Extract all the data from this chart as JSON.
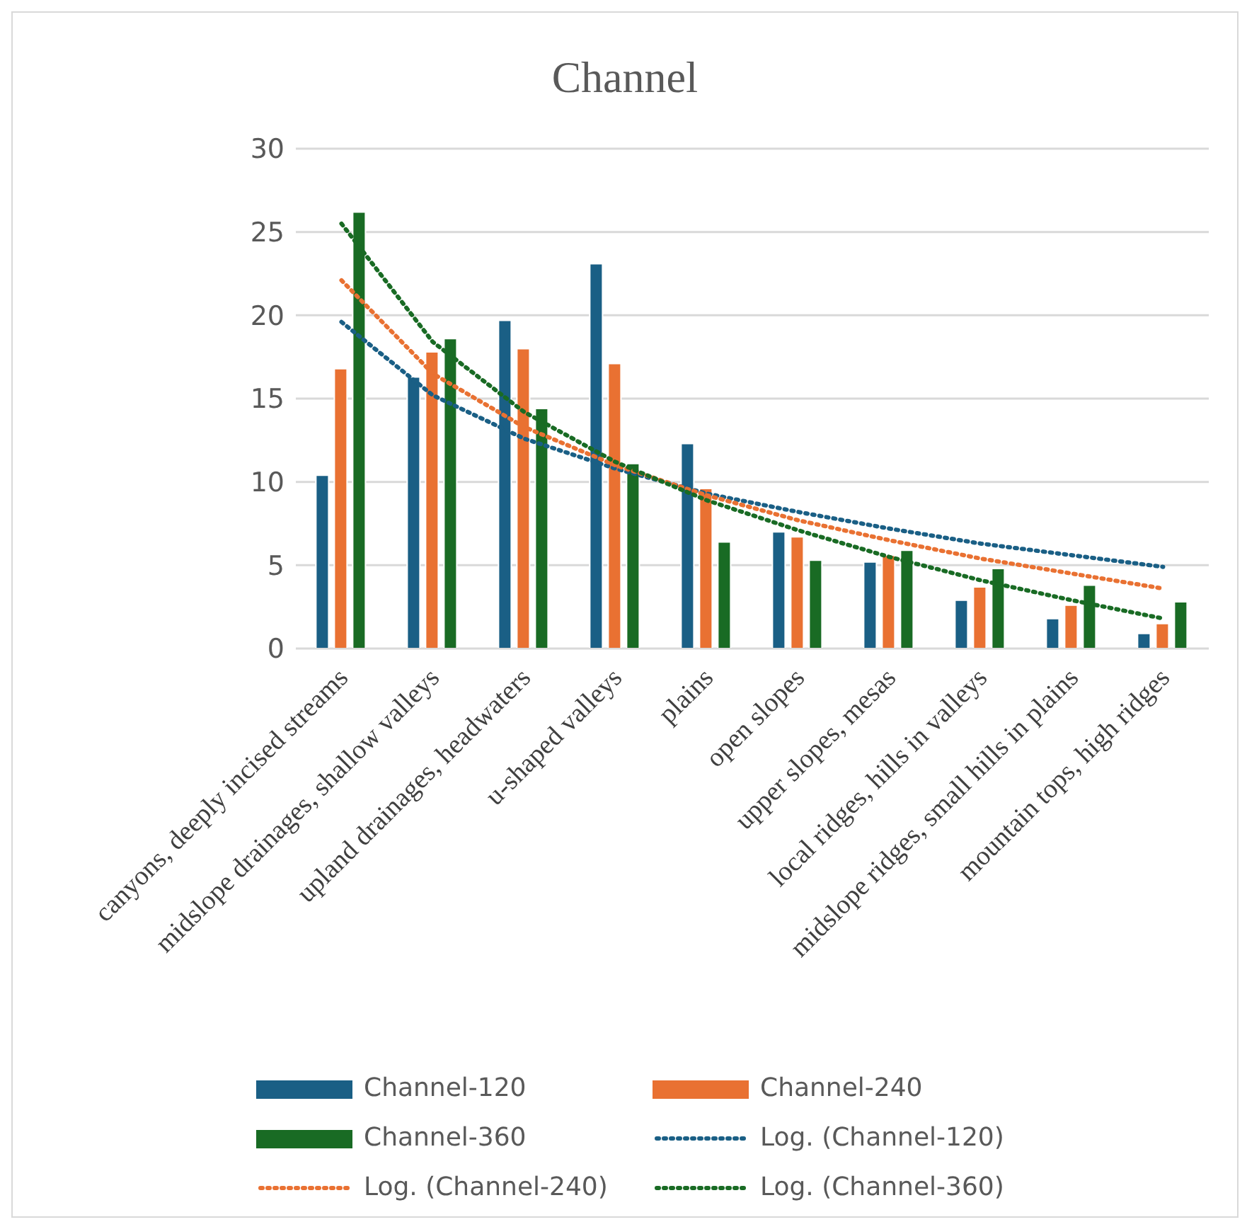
{
  "chart_data": {
    "type": "bar",
    "title": "Channel",
    "categories": [
      "canyons, deeply incised streams",
      "midslope drainages, shallow valleys",
      "upland drainages, headwaters",
      "u-shaped valleys",
      "plains",
      "open slopes",
      "upper slopes, mesas",
      "local ridges, hills in valleys",
      "midslope ridges, small hills in plains",
      "mountain tops, high ridges"
    ],
    "series": [
      {
        "name": "Channel-120",
        "color": "#1a5f85",
        "values": [
          10.4,
          16.3,
          19.7,
          23.1,
          12.3,
          7.0,
          5.2,
          2.9,
          1.8,
          0.9
        ]
      },
      {
        "name": "Channel-240",
        "color": "#e97132",
        "values": [
          16.8,
          17.8,
          18.0,
          17.1,
          9.6,
          6.7,
          5.6,
          3.7,
          2.6,
          1.5
        ]
      },
      {
        "name": "Channel-360",
        "color": "#196b24",
        "values": [
          26.2,
          18.6,
          14.4,
          11.1,
          6.4,
          5.3,
          5.9,
          4.8,
          3.8,
          2.8
        ]
      },
      {
        "name": "Log. (Channel-120)",
        "type": "line",
        "color": "#1a5f85",
        "values": [
          19.6,
          15.2,
          12.6,
          10.8,
          9.3,
          8.2,
          7.2,
          6.3,
          5.6,
          4.9
        ]
      },
      {
        "name": "Log. (Channel-240)",
        "type": "line",
        "color": "#e97132",
        "values": [
          22.1,
          16.5,
          13.3,
          11.0,
          9.2,
          7.7,
          6.5,
          5.4,
          4.5,
          3.6
        ]
      },
      {
        "name": "Log. (Channel-360)",
        "type": "line",
        "color": "#196b24",
        "values": [
          25.5,
          18.4,
          14.2,
          11.2,
          8.9,
          7.1,
          5.5,
          4.1,
          2.9,
          1.8
        ]
      }
    ],
    "ylim": [
      0,
      30
    ],
    "yticks": [
      0,
      5,
      10,
      15,
      20,
      25,
      30
    ],
    "grid": "y",
    "legend": "bottom",
    "line_style": "dotted",
    "marker": "none"
  }
}
